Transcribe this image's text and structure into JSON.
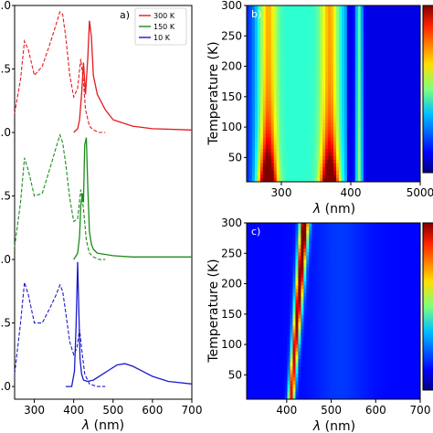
{
  "chart_data": [
    {
      "panel": "a)",
      "type": "line",
      "xlabel_symbol": "λ",
      "xlabel_unit": " (nm)",
      "x_ticks": [
        "300",
        "400",
        "500",
        "600",
        "700"
      ],
      "xlim": [
        250,
        700
      ],
      "y_tick_labels": [
        ".0",
        ".5",
        ".0",
        ".5",
        ".0",
        ".5",
        ".0"
      ],
      "legend": [
        {
          "label": "300 K",
          "color": "#e41a1c"
        },
        {
          "label": "150 K",
          "color": "#1a8c1a"
        },
        {
          "label": "10 K",
          "color": "#1a1acc"
        }
      ],
      "series": [
        {
          "name": "300 K",
          "color": "#e41a1c",
          "offset": 2.0,
          "solid": {
            "x": [
              400,
              410,
              415,
              420,
              425,
              430,
              436,
              440,
              445,
              450,
              460,
              480,
              500,
              550,
              600,
              700
            ],
            "y": [
              0.0,
              0.03,
              0.1,
              0.3,
              0.55,
              0.3,
              0.6,
              0.88,
              0.75,
              0.45,
              0.3,
              0.18,
              0.1,
              0.05,
              0.03,
              0.02
            ]
          },
          "dashed": {
            "x": [
              250,
              265,
              275,
              285,
              300,
              320,
              340,
              355,
              365,
              372,
              380,
              390,
              400,
              410,
              418,
              425,
              430,
              440,
              450,
              465,
              480
            ],
            "y": [
              0.15,
              0.42,
              0.72,
              0.65,
              0.45,
              0.52,
              0.7,
              0.85,
              0.95,
              0.93,
              0.75,
              0.45,
              0.28,
              0.35,
              0.58,
              0.4,
              0.18,
              0.05,
              0.02,
              0.0,
              0.0
            ]
          }
        },
        {
          "name": "150 K",
          "color": "#1a8c1a",
          "offset": 1.0,
          "solid": {
            "x": [
              400,
              410,
              415,
              418,
              422,
              425,
              428,
              432,
              436,
              440,
              445,
              450,
              460,
              480,
              500,
              550,
              600,
              700
            ],
            "y": [
              0.0,
              0.05,
              0.18,
              0.42,
              0.52,
              0.45,
              0.9,
              0.96,
              0.55,
              0.22,
              0.12,
              0.08,
              0.05,
              0.04,
              0.03,
              0.02,
              0.02,
              0.02
            ]
          },
          "dashed": {
            "x": [
              250,
              265,
              275,
              285,
              300,
              320,
              340,
              355,
              365,
              372,
              380,
              390,
              400,
              410,
              418,
              425,
              432,
              440,
              450,
              465,
              480
            ],
            "y": [
              0.1,
              0.45,
              0.8,
              0.7,
              0.5,
              0.52,
              0.72,
              0.88,
              0.98,
              0.92,
              0.75,
              0.48,
              0.3,
              0.32,
              0.55,
              0.4,
              0.15,
              0.05,
              0.02,
              0.0,
              0.0
            ]
          }
        },
        {
          "name": "10 K",
          "color": "#1a1acc",
          "offset": 0.0,
          "solid": {
            "x": [
              380,
              395,
              402,
              406,
              410,
              413,
              416,
              420,
              425,
              435,
              450,
              470,
              490,
              510,
              530,
              550,
              575,
              600,
              640,
              700
            ],
            "y": [
              0.0,
              0.0,
              0.12,
              0.48,
              0.98,
              0.6,
              0.22,
              0.1,
              0.05,
              0.04,
              0.05,
              0.09,
              0.13,
              0.17,
              0.18,
              0.16,
              0.12,
              0.08,
              0.04,
              0.02
            ]
          },
          "dashed": {
            "x": [
              250,
              265,
              275,
              285,
              300,
              320,
              340,
              355,
              365,
              372,
              380,
              390,
              400,
              408,
              415,
              420,
              428,
              440,
              460,
              480
            ],
            "y": [
              0.1,
              0.5,
              0.82,
              0.72,
              0.5,
              0.5,
              0.62,
              0.72,
              0.8,
              0.75,
              0.58,
              0.35,
              0.25,
              0.3,
              0.45,
              0.3,
              0.1,
              0.02,
              0.0,
              0.0
            ]
          }
        }
      ]
    },
    {
      "panel": "b)",
      "type": "heatmap",
      "xlabel_symbol": "λ",
      "xlabel_unit": " (nm)",
      "ylabel": "Temperature (K)",
      "x_ticks": [
        "300",
        "400",
        "500"
      ],
      "x_tick_last_suffix": "0",
      "xlim": [
        250,
        500
      ],
      "y_ticks": [
        "50",
        "100",
        "150",
        "200",
        "250",
        "300"
      ],
      "ylim": [
        10,
        300
      ],
      "colormap": "jet",
      "features": [
        {
          "lambda": 280,
          "width": 13,
          "t_decay": 55,
          "peak": 1.0
        },
        {
          "lambda": 370,
          "width": 13,
          "t_decay": 50,
          "peak": 0.92
        },
        {
          "lambda": 412,
          "width": 5,
          "t_decay": 900,
          "peak": 0.42
        }
      ]
    },
    {
      "panel": "c)",
      "type": "heatmap",
      "xlabel_symbol": "λ",
      "xlabel_unit": " (nm)",
      "ylabel": "Temperature (K)",
      "x_ticks": [
        "400",
        "500",
        "600",
        "700"
      ],
      "xlim": [
        310,
        700
      ],
      "y_ticks": [
        "50",
        "100",
        "150",
        "200",
        "250",
        "300"
      ],
      "ylim": [
        10,
        300
      ],
      "colormap": "jet",
      "features": [
        {
          "ridge_lambda_at_10K": 410,
          "ridge_lambda_at_300K": 440,
          "peak": 1.0
        }
      ]
    }
  ]
}
